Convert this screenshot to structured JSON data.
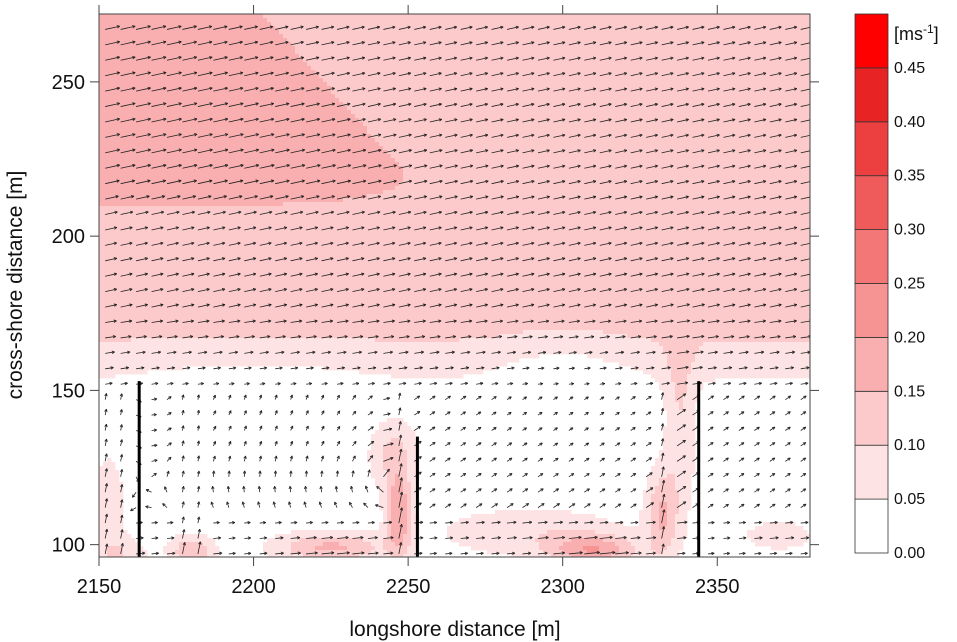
{
  "chart_data": {
    "type": "heatmap",
    "subtype": "filled contour with velocity vector field",
    "xlabel": "longshore distance [m]",
    "ylabel": "cross-shore distance [m]",
    "xlim": [
      2150,
      2380
    ],
    "ylim": [
      96,
      272
    ],
    "x_ticks": [
      2150,
      2200,
      2250,
      2300,
      2350
    ],
    "y_ticks": [
      100,
      150,
      200,
      250
    ],
    "colorbar": {
      "unit_base": "[ms",
      "unit_exp": "-1",
      "unit_close": "]",
      "levels": [
        0.0,
        0.05,
        0.1,
        0.15,
        0.2,
        0.25,
        0.3,
        0.35,
        0.4,
        0.45
      ],
      "level_labels": [
        "0.00",
        "0.05",
        "0.10",
        "0.15",
        "0.20",
        "0.25",
        "0.30",
        "0.35",
        "0.40",
        "0.45"
      ],
      "colors": [
        "#ffffff",
        "#fde3e3",
        "#fccaca",
        "#f9afaf",
        "#f69393",
        "#f37777",
        "#ef5b5b",
        "#ec3f3f",
        "#e82323",
        "#ff0000"
      ]
    },
    "groynes": [
      {
        "x": 2163,
        "y_top": 153
      },
      {
        "x": 2253,
        "y_top": 135
      },
      {
        "x": 2344,
        "y_top": 153
      }
    ],
    "shoreline_y": 96,
    "speed_field_description_regions": [
      {
        "region": "offshore band y>205, x<2215",
        "speed": 0.17
      },
      {
        "region": "offshore y>160",
        "speed": 0.12
      },
      {
        "region": "mid band y 145-175",
        "speed": 0.07
      },
      {
        "region": "embayment circulation y<145",
        "speed": 0.03
      },
      {
        "region": "rip jets at groynes",
        "speed": 0.15
      }
    ],
    "arrow_grid": {
      "dx": 5,
      "dy": 5
    },
    "colors": {
      "arrow": "#222222",
      "groyne": "#000000",
      "frame": "#444444"
    }
  }
}
